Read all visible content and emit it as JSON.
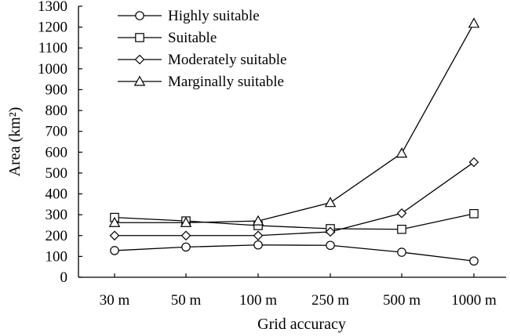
{
  "chart_data": {
    "type": "line",
    "categories": [
      "30 m",
      "50 m",
      "100 m",
      "250 m",
      "500 m",
      "1000 m"
    ],
    "xlabel": "Grid accuracy",
    "ylabel": "Area (km²)",
    "ylim": [
      0,
      1300
    ],
    "yticks": [
      0,
      100,
      200,
      300,
      400,
      500,
      600,
      700,
      800,
      900,
      1000,
      1100,
      1200,
      1300
    ],
    "grid": false,
    "legend_position": "top-left",
    "series": [
      {
        "name": "Highly suitable",
        "marker": "circle",
        "values": [
          128,
          145,
          155,
          153,
          120,
          78
        ]
      },
      {
        "name": "Suitable",
        "marker": "square",
        "values": [
          287,
          270,
          248,
          233,
          230,
          305
        ]
      },
      {
        "name": "Moderately suitable",
        "marker": "diamond",
        "values": [
          200,
          200,
          200,
          218,
          307,
          552
        ]
      },
      {
        "name": "Marginally suitable",
        "marker": "triangle",
        "values": [
          262,
          262,
          270,
          358,
          595,
          1218
        ]
      }
    ]
  }
}
